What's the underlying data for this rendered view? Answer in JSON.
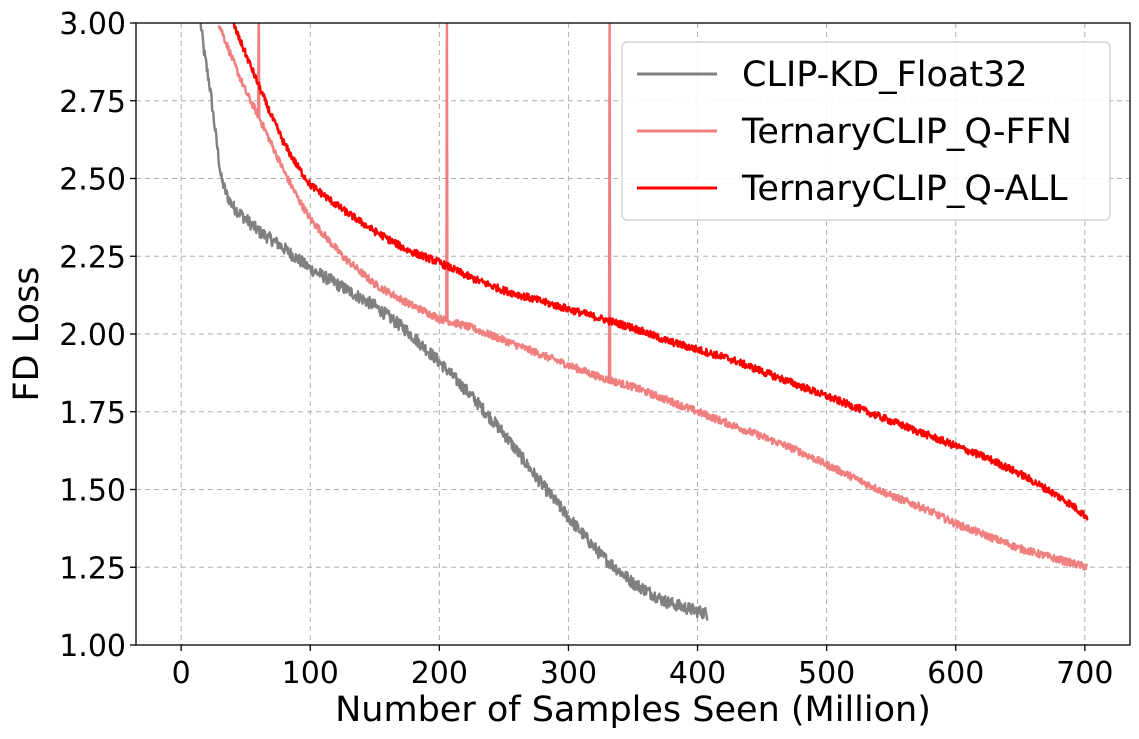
{
  "chart_data": {
    "type": "line",
    "title": "",
    "xlabel": "Number of Samples Seen (Million)",
    "ylabel": "FD Loss",
    "xlim": [
      -35,
      735
    ],
    "ylim": [
      1.0,
      3.0
    ],
    "xticks": [
      0,
      100,
      200,
      300,
      400,
      500,
      600,
      700
    ],
    "xtick_labels": [
      "0",
      "100",
      "200",
      "300",
      "400",
      "500",
      "600",
      "700"
    ],
    "yticks": [
      1.0,
      1.25,
      1.5,
      1.75,
      2.0,
      2.25,
      2.5,
      2.75,
      3.0
    ],
    "ytick_labels": [
      "1.00",
      "1.25",
      "1.50",
      "1.75",
      "2.00",
      "2.25",
      "2.50",
      "2.75",
      "3.00"
    ],
    "grid": true,
    "legend_position": "upper right",
    "series": [
      {
        "name": "CLIP-KD_Float32",
        "color": "#808080",
        "noise": 0.02,
        "points": [
          [
            15,
            3.0
          ],
          [
            18,
            2.9
          ],
          [
            22,
            2.8
          ],
          [
            25,
            2.7
          ],
          [
            28,
            2.6
          ],
          [
            31,
            2.5
          ],
          [
            35,
            2.45
          ],
          [
            40,
            2.41
          ],
          [
            50,
            2.37
          ],
          [
            60,
            2.33
          ],
          [
            75,
            2.29
          ],
          [
            100,
            2.21
          ],
          [
            125,
            2.15
          ],
          [
            150,
            2.09
          ],
          [
            175,
            2.01
          ],
          [
            200,
            1.91
          ],
          [
            225,
            1.8
          ],
          [
            250,
            1.68
          ],
          [
            275,
            1.54
          ],
          [
            300,
            1.41
          ],
          [
            325,
            1.29
          ],
          [
            350,
            1.2
          ],
          [
            375,
            1.14
          ],
          [
            390,
            1.12
          ],
          [
            408,
            1.1
          ]
        ],
        "spikes": []
      },
      {
        "name": "TernaryCLIP_Q-FFN",
        "color": "#f08080",
        "noise": 0.012,
        "points": [
          [
            29,
            3.0
          ],
          [
            40,
            2.88
          ],
          [
            50,
            2.78
          ],
          [
            60,
            2.7
          ],
          [
            70,
            2.61
          ],
          [
            80,
            2.52
          ],
          [
            90,
            2.44
          ],
          [
            100,
            2.37
          ],
          [
            125,
            2.25
          ],
          [
            150,
            2.16
          ],
          [
            175,
            2.1
          ],
          [
            200,
            2.05
          ],
          [
            225,
            2.02
          ],
          [
            250,
            1.98
          ],
          [
            275,
            1.94
          ],
          [
            300,
            1.9
          ],
          [
            325,
            1.86
          ],
          [
            350,
            1.83
          ],
          [
            375,
            1.79
          ],
          [
            400,
            1.75
          ],
          [
            425,
            1.71
          ],
          [
            450,
            1.67
          ],
          [
            475,
            1.63
          ],
          [
            500,
            1.58
          ],
          [
            525,
            1.53
          ],
          [
            550,
            1.48
          ],
          [
            575,
            1.44
          ],
          [
            600,
            1.39
          ],
          [
            625,
            1.35
          ],
          [
            650,
            1.31
          ],
          [
            675,
            1.28
          ],
          [
            702,
            1.25
          ]
        ],
        "spikes": [
          [
            60,
            3.0
          ],
          [
            206,
            3.0
          ],
          [
            332,
            3.0
          ]
        ]
      },
      {
        "name": "TernaryCLIP_Q-ALL",
        "color": "#ff0000",
        "noise": 0.012,
        "points": [
          [
            40,
            3.0
          ],
          [
            50,
            2.9
          ],
          [
            60,
            2.8
          ],
          [
            70,
            2.7
          ],
          [
            80,
            2.61
          ],
          [
            90,
            2.54
          ],
          [
            100,
            2.48
          ],
          [
            125,
            2.4
          ],
          [
            150,
            2.33
          ],
          [
            175,
            2.27
          ],
          [
            200,
            2.23
          ],
          [
            225,
            2.18
          ],
          [
            250,
            2.14
          ],
          [
            275,
            2.11
          ],
          [
            300,
            2.08
          ],
          [
            325,
            2.05
          ],
          [
            350,
            2.02
          ],
          [
            375,
            1.98
          ],
          [
            400,
            1.95
          ],
          [
            425,
            1.92
          ],
          [
            450,
            1.88
          ],
          [
            475,
            1.84
          ],
          [
            500,
            1.8
          ],
          [
            525,
            1.76
          ],
          [
            550,
            1.72
          ],
          [
            575,
            1.68
          ],
          [
            600,
            1.64
          ],
          [
            625,
            1.6
          ],
          [
            650,
            1.55
          ],
          [
            675,
            1.49
          ],
          [
            690,
            1.45
          ],
          [
            702,
            1.41
          ]
        ],
        "spikes": []
      }
    ]
  }
}
